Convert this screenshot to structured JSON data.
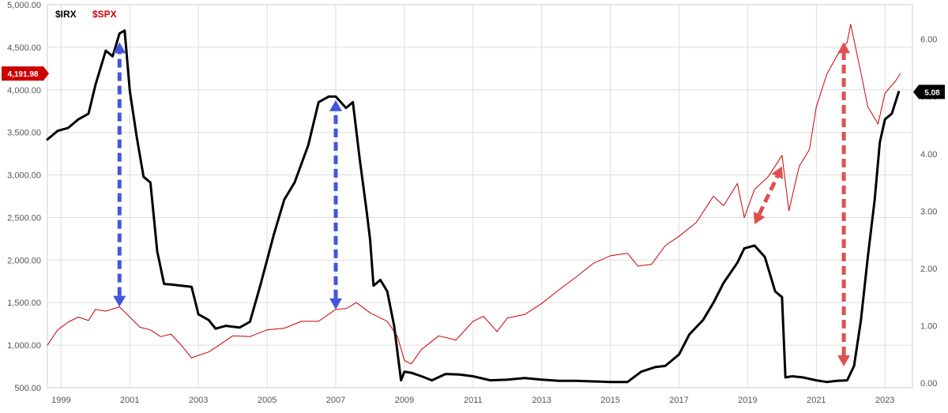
{
  "chart_data": {
    "type": "line",
    "title": "",
    "xlabel": "",
    "ylabel": "",
    "legend_placement": "top-left",
    "grid": true,
    "x_tick_labels": [
      "1999",
      "2001",
      "2003",
      "2005",
      "2007",
      "2009",
      "2011",
      "2013",
      "2015",
      "2017",
      "2019",
      "2021",
      "2023"
    ],
    "x_range": [
      1998.6,
      2023.8
    ],
    "left_axis": {
      "series": "$SPX",
      "range": [
        500,
        5000
      ],
      "tick_labels": [
        "500.00",
        "1,000.00",
        "1,500.00",
        "2,000.00",
        "2,500.00",
        "3,000.00",
        "3,500.00",
        "4,000.00",
        "4,500.00",
        "5,000.00"
      ]
    },
    "right_axis": {
      "series": "$IRX",
      "range": [
        -0.08,
        6.6
      ],
      "tick_labels": [
        "0.00",
        "1.00",
        "2.00",
        "3.00",
        "4.00",
        "5.00",
        "6.00"
      ]
    },
    "series": [
      {
        "name": "$IRX",
        "color": "#000000",
        "axis": "right",
        "last_value_label": "5.08",
        "points": [
          [
            1998.6,
            4.25
          ],
          [
            1998.9,
            4.4
          ],
          [
            1999.2,
            4.45
          ],
          [
            1999.5,
            4.6
          ],
          [
            1999.8,
            4.7
          ],
          [
            2000.0,
            5.2
          ],
          [
            2000.3,
            5.8
          ],
          [
            2000.5,
            5.7
          ],
          [
            2000.7,
            6.1
          ],
          [
            2000.85,
            6.15
          ],
          [
            2001.0,
            5.1
          ],
          [
            2001.2,
            4.3
          ],
          [
            2001.4,
            3.6
          ],
          [
            2001.6,
            3.5
          ],
          [
            2001.8,
            2.3
          ],
          [
            2002.0,
            1.73
          ],
          [
            2002.2,
            1.72
          ],
          [
            2002.5,
            1.7
          ],
          [
            2002.8,
            1.68
          ],
          [
            2003.0,
            1.2
          ],
          [
            2003.3,
            1.1
          ],
          [
            2003.5,
            0.95
          ],
          [
            2003.8,
            1.0
          ],
          [
            2004.2,
            0.97
          ],
          [
            2004.5,
            1.07
          ],
          [
            2004.8,
            1.7
          ],
          [
            2005.2,
            2.6
          ],
          [
            2005.5,
            3.2
          ],
          [
            2005.8,
            3.5
          ],
          [
            2006.2,
            4.15
          ],
          [
            2006.5,
            4.9
          ],
          [
            2006.8,
            5.0
          ],
          [
            2007.0,
            5.0
          ],
          [
            2007.3,
            4.8
          ],
          [
            2007.5,
            4.9
          ],
          [
            2007.7,
            3.9
          ],
          [
            2007.9,
            3.0
          ],
          [
            2008.0,
            2.5
          ],
          [
            2008.1,
            1.7
          ],
          [
            2008.3,
            1.8
          ],
          [
            2008.5,
            1.6
          ],
          [
            2008.7,
            1.0
          ],
          [
            2008.9,
            0.05
          ],
          [
            2009.0,
            0.2
          ],
          [
            2009.2,
            0.18
          ],
          [
            2009.5,
            0.12
          ],
          [
            2009.8,
            0.05
          ],
          [
            2010.2,
            0.16
          ],
          [
            2010.6,
            0.15
          ],
          [
            2011.0,
            0.12
          ],
          [
            2011.5,
            0.05
          ],
          [
            2012.0,
            0.06
          ],
          [
            2012.5,
            0.09
          ],
          [
            2013.0,
            0.06
          ],
          [
            2013.5,
            0.04
          ],
          [
            2014.0,
            0.04
          ],
          [
            2014.5,
            0.03
          ],
          [
            2015.0,
            0.02
          ],
          [
            2015.5,
            0.02
          ],
          [
            2015.9,
            0.2
          ],
          [
            2016.3,
            0.28
          ],
          [
            2016.6,
            0.3
          ],
          [
            2017.0,
            0.5
          ],
          [
            2017.3,
            0.85
          ],
          [
            2017.7,
            1.1
          ],
          [
            2018.0,
            1.4
          ],
          [
            2018.3,
            1.75
          ],
          [
            2018.7,
            2.1
          ],
          [
            2018.9,
            2.35
          ],
          [
            2019.2,
            2.4
          ],
          [
            2019.5,
            2.2
          ],
          [
            2019.8,
            1.6
          ],
          [
            2020.0,
            1.5
          ],
          [
            2020.1,
            0.1
          ],
          [
            2020.3,
            0.12
          ],
          [
            2020.6,
            0.1
          ],
          [
            2021.0,
            0.05
          ],
          [
            2021.3,
            0.02
          ],
          [
            2021.6,
            0.04
          ],
          [
            2021.9,
            0.05
          ],
          [
            2022.1,
            0.3
          ],
          [
            2022.3,
            1.1
          ],
          [
            2022.5,
            2.2
          ],
          [
            2022.7,
            3.2
          ],
          [
            2022.85,
            4.2
          ],
          [
            2023.0,
            4.6
          ],
          [
            2023.2,
            4.7
          ],
          [
            2023.4,
            5.08
          ]
        ]
      },
      {
        "name": "$SPX",
        "color": "#cc0000",
        "axis": "left",
        "last_value_label": "4,191.98",
        "points": [
          [
            1998.6,
            1000
          ],
          [
            1998.9,
            1180
          ],
          [
            1999.2,
            1270
          ],
          [
            1999.5,
            1330
          ],
          [
            1999.8,
            1290
          ],
          [
            2000.0,
            1420
          ],
          [
            2000.3,
            1400
          ],
          [
            2000.7,
            1450
          ],
          [
            2001.0,
            1330
          ],
          [
            2001.3,
            1210
          ],
          [
            2001.6,
            1180
          ],
          [
            2001.9,
            1100
          ],
          [
            2002.2,
            1130
          ],
          [
            2002.5,
            1000
          ],
          [
            2002.8,
            850
          ],
          [
            2003.0,
            880
          ],
          [
            2003.3,
            920
          ],
          [
            2003.6,
            1000
          ],
          [
            2004.0,
            1110
          ],
          [
            2004.5,
            1100
          ],
          [
            2005.0,
            1180
          ],
          [
            2005.5,
            1200
          ],
          [
            2006.0,
            1280
          ],
          [
            2006.5,
            1280
          ],
          [
            2007.0,
            1420
          ],
          [
            2007.3,
            1430
          ],
          [
            2007.6,
            1500
          ],
          [
            2008.0,
            1380
          ],
          [
            2008.5,
            1280
          ],
          [
            2008.8,
            1100
          ],
          [
            2009.0,
            820
          ],
          [
            2009.2,
            780
          ],
          [
            2009.5,
            950
          ],
          [
            2010.0,
            1110
          ],
          [
            2010.5,
            1060
          ],
          [
            2011.0,
            1280
          ],
          [
            2011.3,
            1340
          ],
          [
            2011.7,
            1160
          ],
          [
            2012.0,
            1320
          ],
          [
            2012.5,
            1360
          ],
          [
            2013.0,
            1490
          ],
          [
            2013.5,
            1650
          ],
          [
            2014.0,
            1800
          ],
          [
            2014.5,
            1960
          ],
          [
            2015.0,
            2050
          ],
          [
            2015.5,
            2080
          ],
          [
            2015.8,
            1930
          ],
          [
            2016.2,
            1950
          ],
          [
            2016.6,
            2170
          ],
          [
            2017.0,
            2280
          ],
          [
            2017.5,
            2440
          ],
          [
            2018.0,
            2750
          ],
          [
            2018.3,
            2640
          ],
          [
            2018.7,
            2900
          ],
          [
            2018.9,
            2500
          ],
          [
            2019.2,
            2830
          ],
          [
            2019.6,
            2980
          ],
          [
            2020.0,
            3230
          ],
          [
            2020.2,
            2580
          ],
          [
            2020.5,
            3100
          ],
          [
            2020.8,
            3300
          ],
          [
            2021.0,
            3800
          ],
          [
            2021.3,
            4180
          ],
          [
            2021.6,
            4400
          ],
          [
            2021.9,
            4560
          ],
          [
            2022.0,
            4770
          ],
          [
            2022.3,
            4200
          ],
          [
            2022.5,
            3800
          ],
          [
            2022.8,
            3600
          ],
          [
            2023.0,
            3960
          ],
          [
            2023.3,
            4100
          ],
          [
            2023.45,
            4191.98
          ]
        ]
      }
    ],
    "annotations": [
      {
        "type": "double-arrow",
        "color": "#4455dd",
        "from": [
          2000.7,
          1450
        ],
        "to": [
          2000.7,
          4560
        ]
      },
      {
        "type": "double-arrow",
        "color": "#4455dd",
        "from": [
          2007.0,
          1420
        ],
        "to": [
          2007.0,
          3880
        ]
      },
      {
        "type": "double-arrow",
        "color": "#e05050",
        "from": [
          2019.2,
          2420
        ],
        "to": [
          2020.0,
          3100
        ]
      },
      {
        "type": "double-arrow",
        "color": "#e05050",
        "from": [
          2021.8,
          750
        ],
        "to": [
          2021.8,
          4560
        ]
      }
    ]
  }
}
